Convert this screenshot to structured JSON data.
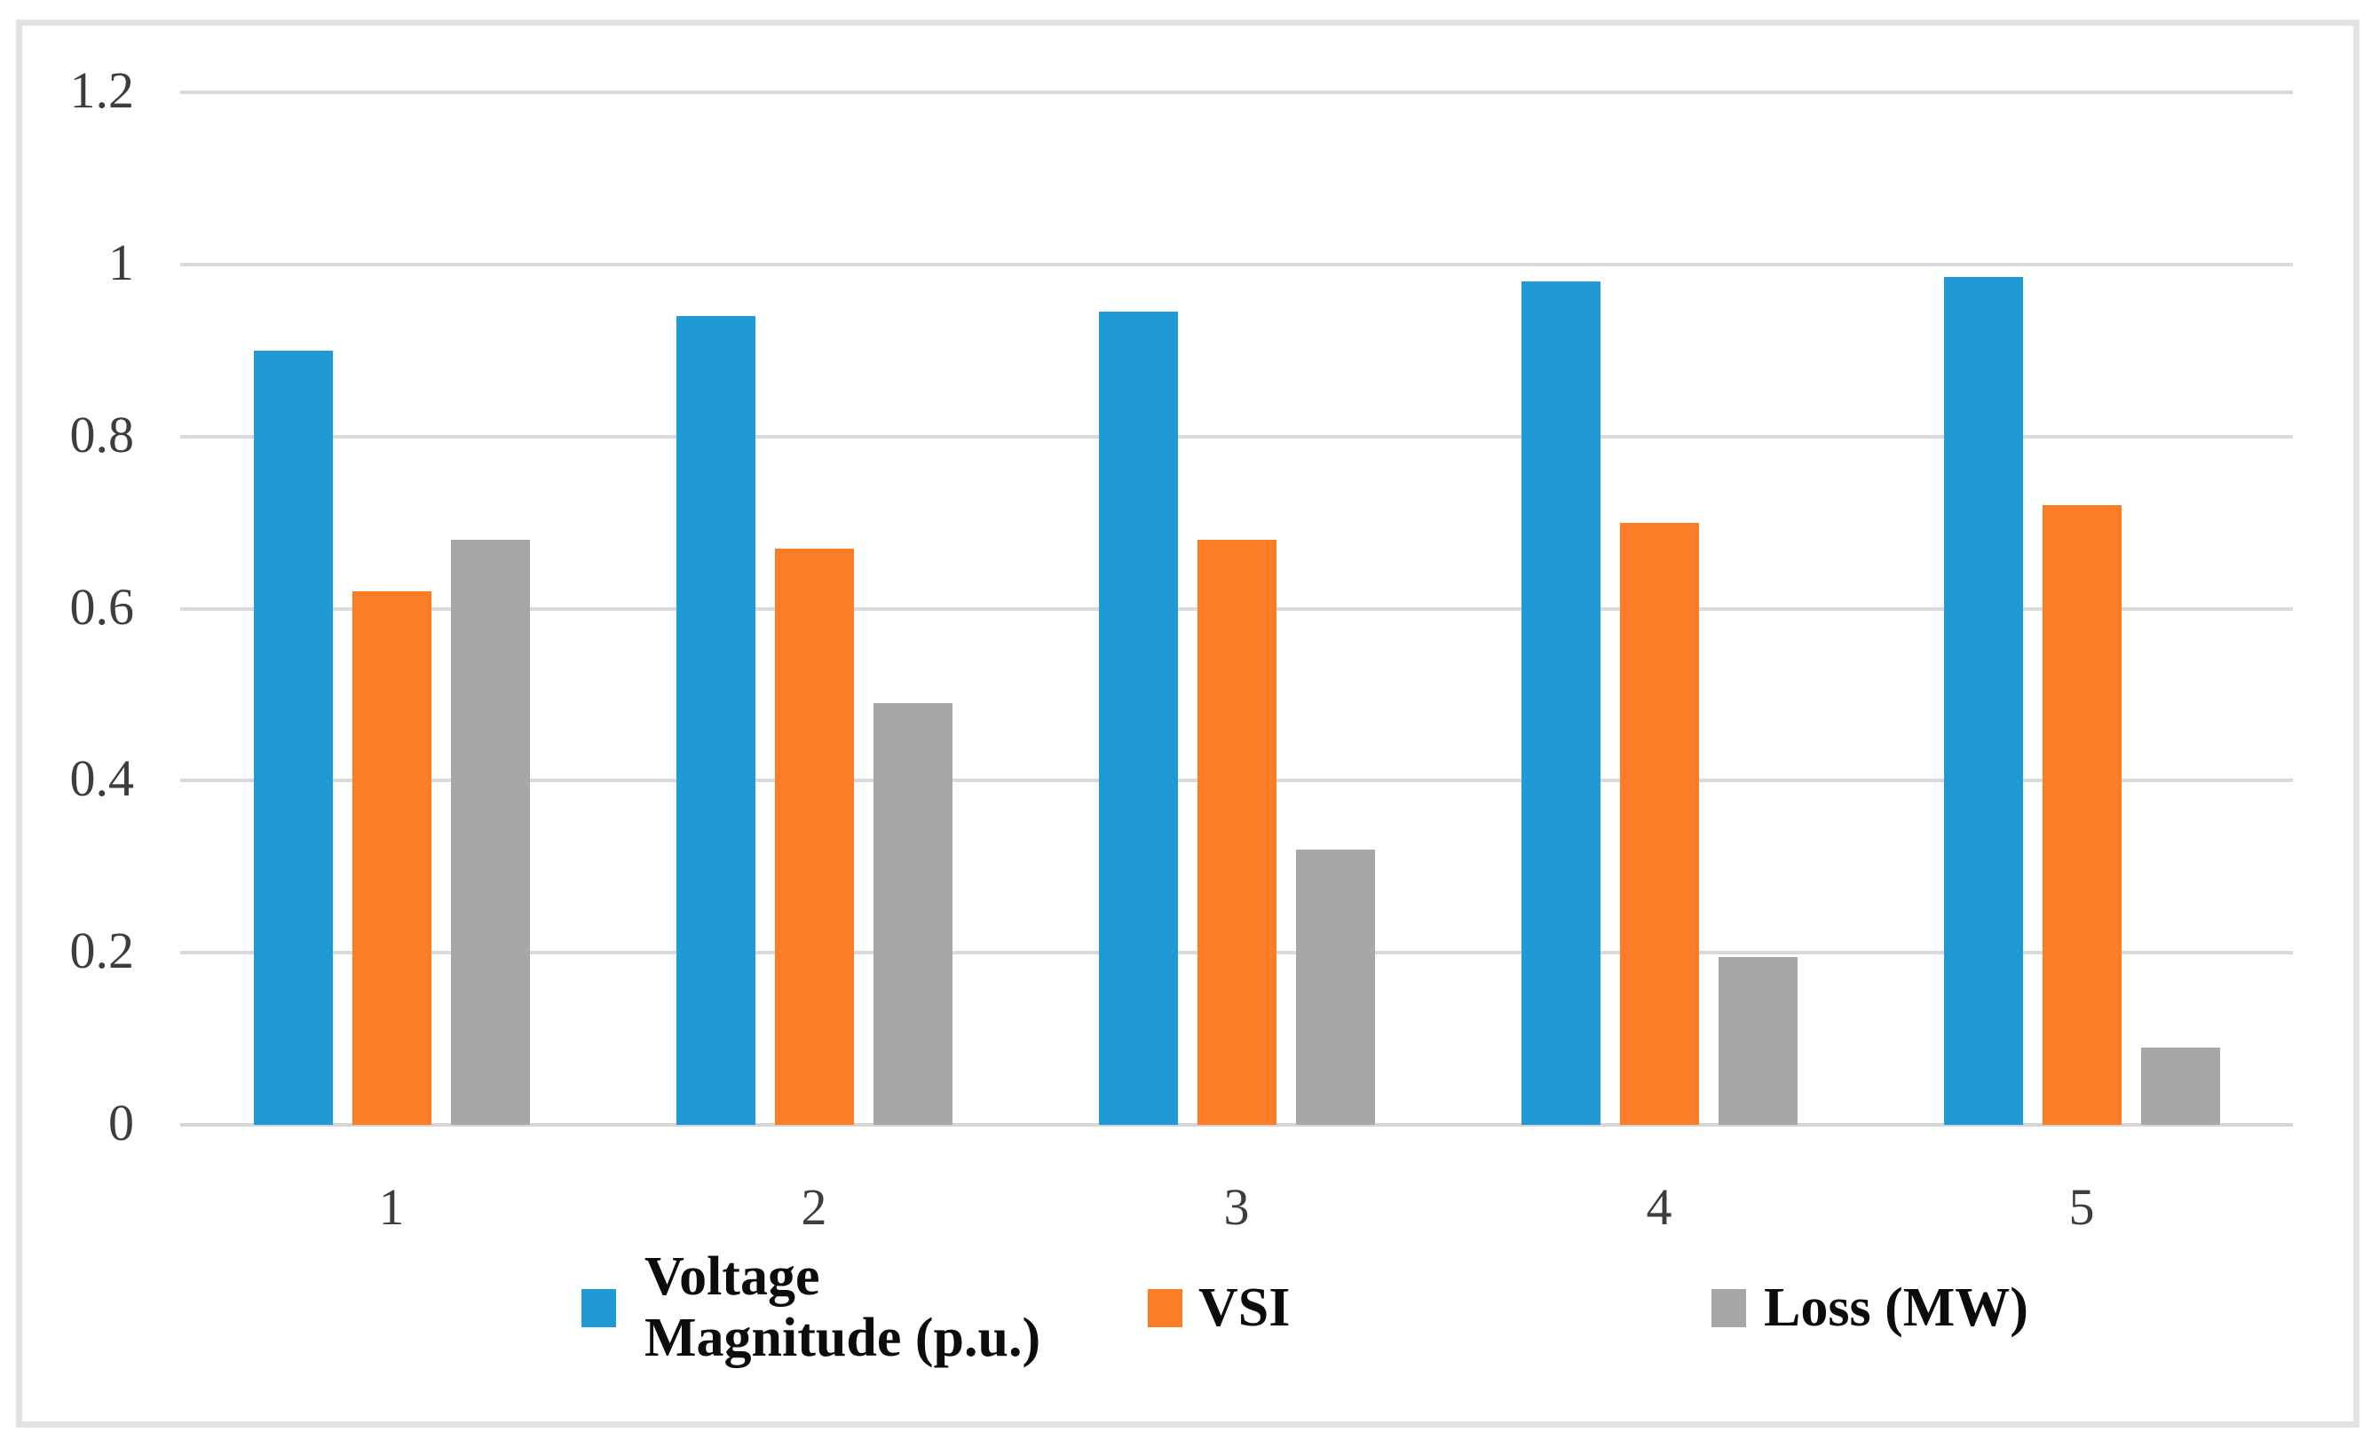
{
  "chart_data": {
    "type": "bar",
    "title": "",
    "xlabel": "",
    "ylabel": "",
    "categories": [
      "1",
      "2",
      "3",
      "4",
      "5"
    ],
    "series": [
      {
        "name": "Voltage Magnitude (p.u.)",
        "legend_lines": [
          "Voltage",
          "Magnitude (p.u.)"
        ],
        "color": "#209ad6",
        "values": [
          0.9,
          0.94,
          0.945,
          0.98,
          0.985
        ]
      },
      {
        "name": "VSI",
        "legend_lines": [
          "VSI"
        ],
        "color": "#fc7d25",
        "values": [
          0.62,
          0.67,
          0.68,
          0.7,
          0.72
        ]
      },
      {
        "name": "Loss (MW)",
        "legend_lines": [
          "Loss (MW)"
        ],
        "color": "#a7a7a7",
        "values": [
          0.68,
          0.49,
          0.32,
          0.195,
          0.09
        ]
      }
    ],
    "ylim": [
      0,
      1.2
    ],
    "y_ticks": [
      {
        "value": 1.2,
        "label": "1.2"
      },
      {
        "value": 1.0,
        "label": "1"
      },
      {
        "value": 0.8,
        "label": "0.8"
      },
      {
        "value": 0.6,
        "label": "0.6"
      },
      {
        "value": 0.4,
        "label": "0.4"
      },
      {
        "value": 0.2,
        "label": "0.2"
      },
      {
        "value": 0.0,
        "label": "0"
      }
    ],
    "grid": "horizontal",
    "legend_position": "bottom"
  },
  "colors": {
    "gridline": "#dadada",
    "baseline": "#d5d5d5",
    "frame_border": "#e2e2e2",
    "axis_text": "#3d3d3d",
    "legend_text": "#0c0c0c",
    "background": "#ffffff"
  }
}
